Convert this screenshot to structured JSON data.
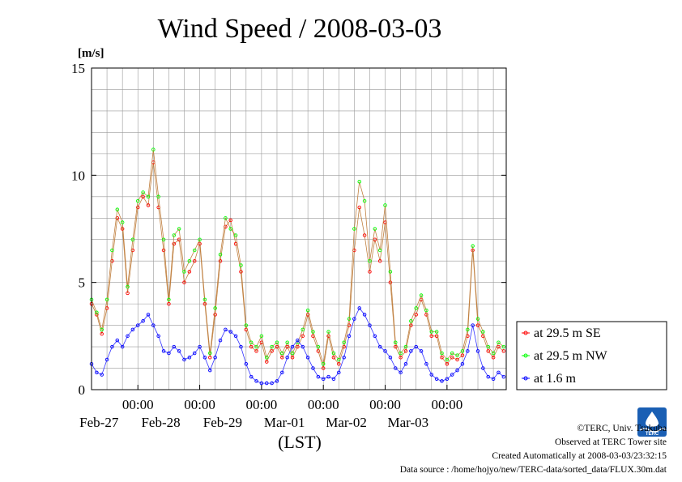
{
  "chart_data": {
    "type": "line",
    "title": "Wind Speed / 2008-03-03",
    "ylabel": "[m/s]",
    "xlabel": "(LST)",
    "ylim": [
      0,
      15
    ],
    "yticks": [
      0,
      5,
      10,
      15
    ],
    "xlim": [
      "2008-02-26T06:00",
      "2008-03-03T23:00"
    ],
    "xticks": [
      {
        "time": "2008-02-27T00:00",
        "label": "00:00",
        "date": "Feb-27"
      },
      {
        "time": "2008-02-28T00:00",
        "label": "00:00",
        "date": "Feb-28"
      },
      {
        "time": "2008-02-29T00:00",
        "label": "00:00",
        "date": "Feb-29"
      },
      {
        "time": "2008-03-01T00:00",
        "label": "00:00",
        "date": "Mar-01"
      },
      {
        "time": "2008-03-02T00:00",
        "label": "00:00",
        "date": "Mar-02"
      },
      {
        "time": "2008-03-03T00:00",
        "label": "00:00",
        "date": "Mar-03"
      }
    ],
    "grid": true,
    "legend_position": "right",
    "series": [
      {
        "name": "at 29.5 m SE",
        "color": "#ff0000",
        "points": [
          [
            "2008-02-26T06:00",
            4.0
          ],
          [
            "2008-02-26T08:00",
            3.5
          ],
          [
            "2008-02-26T10:00",
            2.6
          ],
          [
            "2008-02-26T12:00",
            3.8
          ],
          [
            "2008-02-26T14:00",
            6.0
          ],
          [
            "2008-02-26T16:00",
            8.0
          ],
          [
            "2008-02-26T18:00",
            7.5
          ],
          [
            "2008-02-26T20:00",
            4.5
          ],
          [
            "2008-02-26T22:00",
            6.5
          ],
          [
            "2008-02-27T00:00",
            8.5
          ],
          [
            "2008-02-27T02:00",
            9.0
          ],
          [
            "2008-02-27T04:00",
            8.6
          ],
          [
            "2008-02-27T06:00",
            10.6
          ],
          [
            "2008-02-27T08:00",
            8.5
          ],
          [
            "2008-02-27T10:00",
            6.5
          ],
          [
            "2008-02-27T12:00",
            4.0
          ],
          [
            "2008-02-27T14:00",
            6.8
          ],
          [
            "2008-02-27T16:00",
            7.0
          ],
          [
            "2008-02-27T18:00",
            5.0
          ],
          [
            "2008-02-27T20:00",
            5.5
          ],
          [
            "2008-02-27T22:00",
            6.0
          ],
          [
            "2008-02-28T00:00",
            6.8
          ],
          [
            "2008-02-28T02:00",
            4.0
          ],
          [
            "2008-02-28T04:00",
            1.5
          ],
          [
            "2008-02-28T06:00",
            3.5
          ],
          [
            "2008-02-28T08:00",
            6.0
          ],
          [
            "2008-02-28T10:00",
            7.6
          ],
          [
            "2008-02-28T12:00",
            7.9
          ],
          [
            "2008-02-28T14:00",
            6.8
          ],
          [
            "2008-02-28T16:00",
            5.5
          ],
          [
            "2008-02-28T18:00",
            2.8
          ],
          [
            "2008-02-28T20:00",
            2.0
          ],
          [
            "2008-02-28T22:00",
            1.8
          ],
          [
            "2008-02-29T00:00",
            2.2
          ],
          [
            "2008-02-29T02:00",
            1.3
          ],
          [
            "2008-02-29T04:00",
            1.8
          ],
          [
            "2008-02-29T06:00",
            2.0
          ],
          [
            "2008-02-29T08:00",
            1.5
          ],
          [
            "2008-02-29T10:00",
            2.0
          ],
          [
            "2008-02-29T12:00",
            1.5
          ],
          [
            "2008-02-29T14:00",
            2.0
          ],
          [
            "2008-02-29T16:00",
            2.5
          ],
          [
            "2008-02-29T18:00",
            3.5
          ],
          [
            "2008-02-29T20:00",
            2.5
          ],
          [
            "2008-02-29T22:00",
            1.8
          ],
          [
            "2008-03-01T00:00",
            1.0
          ],
          [
            "2008-03-01T02:00",
            2.5
          ],
          [
            "2008-03-01T04:00",
            1.5
          ],
          [
            "2008-03-01T06:00",
            1.2
          ],
          [
            "2008-03-01T08:00",
            2.0
          ],
          [
            "2008-03-01T10:00",
            3.0
          ],
          [
            "2008-03-01T12:00",
            6.5
          ],
          [
            "2008-03-01T14:00",
            8.5
          ],
          [
            "2008-03-01T16:00",
            7.2
          ],
          [
            "2008-03-01T18:00",
            5.5
          ],
          [
            "2008-03-01T20:00",
            7.0
          ],
          [
            "2008-03-01T22:00",
            6.0
          ],
          [
            "2008-03-02T00:00",
            7.8
          ],
          [
            "2008-03-02T02:00",
            5.0
          ],
          [
            "2008-03-02T04:00",
            2.0
          ],
          [
            "2008-03-02T06:00",
            1.5
          ],
          [
            "2008-03-02T08:00",
            1.8
          ],
          [
            "2008-03-02T10:00",
            3.0
          ],
          [
            "2008-03-02T12:00",
            3.5
          ],
          [
            "2008-03-02T14:00",
            4.2
          ],
          [
            "2008-03-02T16:00",
            3.5
          ],
          [
            "2008-03-02T18:00",
            2.5
          ],
          [
            "2008-03-02T20:00",
            2.5
          ],
          [
            "2008-03-02T22:00",
            1.5
          ],
          [
            "2008-03-03T00:00",
            1.2
          ],
          [
            "2008-03-03T02:00",
            1.5
          ],
          [
            "2008-03-03T04:00",
            1.4
          ],
          [
            "2008-03-03T06:00",
            1.6
          ],
          [
            "2008-03-03T08:00",
            2.5
          ],
          [
            "2008-03-03T10:00",
            6.5
          ],
          [
            "2008-03-03T12:00",
            3.0
          ],
          [
            "2008-03-03T14:00",
            2.5
          ],
          [
            "2008-03-03T16:00",
            1.8
          ],
          [
            "2008-03-03T18:00",
            1.5
          ],
          [
            "2008-03-03T20:00",
            2.0
          ],
          [
            "2008-03-03T22:00",
            1.8
          ]
        ]
      },
      {
        "name": "at 29.5 m NW",
        "color": "#00ff00",
        "points": [
          [
            "2008-02-26T06:00",
            4.2
          ],
          [
            "2008-02-26T08:00",
            3.6
          ],
          [
            "2008-02-26T10:00",
            2.8
          ],
          [
            "2008-02-26T12:00",
            4.2
          ],
          [
            "2008-02-26T14:00",
            6.5
          ],
          [
            "2008-02-26T16:00",
            8.4
          ],
          [
            "2008-02-26T18:00",
            7.8
          ],
          [
            "2008-02-26T20:00",
            4.8
          ],
          [
            "2008-02-26T22:00",
            7.0
          ],
          [
            "2008-02-27T00:00",
            8.8
          ],
          [
            "2008-02-27T02:00",
            9.2
          ],
          [
            "2008-02-27T04:00",
            9.0
          ],
          [
            "2008-02-27T06:00",
            11.2
          ],
          [
            "2008-02-27T08:00",
            9.0
          ],
          [
            "2008-02-27T10:00",
            7.0
          ],
          [
            "2008-02-27T12:00",
            4.2
          ],
          [
            "2008-02-27T14:00",
            7.2
          ],
          [
            "2008-02-27T16:00",
            7.5
          ],
          [
            "2008-02-27T18:00",
            5.5
          ],
          [
            "2008-02-27T20:00",
            6.0
          ],
          [
            "2008-02-27T22:00",
            6.5
          ],
          [
            "2008-02-28T00:00",
            7.0
          ],
          [
            "2008-02-28T02:00",
            4.2
          ],
          [
            "2008-02-28T04:00",
            1.7
          ],
          [
            "2008-02-28T06:00",
            3.8
          ],
          [
            "2008-02-28T08:00",
            6.3
          ],
          [
            "2008-02-28T10:00",
            8.0
          ],
          [
            "2008-02-28T12:00",
            7.5
          ],
          [
            "2008-02-28T14:00",
            7.2
          ],
          [
            "2008-02-28T16:00",
            5.8
          ],
          [
            "2008-02-28T18:00",
            3.0
          ],
          [
            "2008-02-28T20:00",
            2.2
          ],
          [
            "2008-02-28T22:00",
            2.0
          ],
          [
            "2008-02-29T00:00",
            2.5
          ],
          [
            "2008-02-29T02:00",
            1.5
          ],
          [
            "2008-02-29T04:00",
            2.0
          ],
          [
            "2008-02-29T06:00",
            2.2
          ],
          [
            "2008-02-29T08:00",
            1.7
          ],
          [
            "2008-02-29T10:00",
            2.2
          ],
          [
            "2008-02-29T12:00",
            1.7
          ],
          [
            "2008-02-29T14:00",
            2.2
          ],
          [
            "2008-02-29T16:00",
            2.8
          ],
          [
            "2008-02-29T18:00",
            3.7
          ],
          [
            "2008-02-29T20:00",
            2.7
          ],
          [
            "2008-02-29T22:00",
            2.0
          ],
          [
            "2008-03-01T00:00",
            1.2
          ],
          [
            "2008-03-01T02:00",
            2.7
          ],
          [
            "2008-03-01T04:00",
            1.7
          ],
          [
            "2008-03-01T06:00",
            1.4
          ],
          [
            "2008-03-01T08:00",
            2.2
          ],
          [
            "2008-03-01T10:00",
            3.3
          ],
          [
            "2008-03-01T12:00",
            7.5
          ],
          [
            "2008-03-01T14:00",
            9.7
          ],
          [
            "2008-03-01T16:00",
            8.8
          ],
          [
            "2008-03-01T18:00",
            6.0
          ],
          [
            "2008-03-01T20:00",
            7.5
          ],
          [
            "2008-03-01T22:00",
            6.5
          ],
          [
            "2008-03-02T00:00",
            8.6
          ],
          [
            "2008-03-02T02:00",
            5.5
          ],
          [
            "2008-03-02T04:00",
            2.2
          ],
          [
            "2008-03-02T06:00",
            1.7
          ],
          [
            "2008-03-02T08:00",
            2.0
          ],
          [
            "2008-03-02T10:00",
            3.2
          ],
          [
            "2008-03-02T12:00",
            3.8
          ],
          [
            "2008-03-02T14:00",
            4.4
          ],
          [
            "2008-03-02T16:00",
            3.7
          ],
          [
            "2008-03-02T18:00",
            2.7
          ],
          [
            "2008-03-02T20:00",
            2.7
          ],
          [
            "2008-03-02T22:00",
            1.7
          ],
          [
            "2008-03-03T00:00",
            1.4
          ],
          [
            "2008-03-03T02:00",
            1.7
          ],
          [
            "2008-03-03T04:00",
            1.6
          ],
          [
            "2008-03-03T06:00",
            1.8
          ],
          [
            "2008-03-03T08:00",
            2.8
          ],
          [
            "2008-03-03T10:00",
            6.7
          ],
          [
            "2008-03-03T12:00",
            3.3
          ],
          [
            "2008-03-03T14:00",
            2.7
          ],
          [
            "2008-03-03T16:00",
            2.0
          ],
          [
            "2008-03-03T18:00",
            1.7
          ],
          [
            "2008-03-03T20:00",
            2.2
          ],
          [
            "2008-03-03T22:00",
            2.0
          ]
        ]
      },
      {
        "name": "at 1.6 m",
        "color": "#0000ff",
        "points": [
          [
            "2008-02-26T06:00",
            1.2
          ],
          [
            "2008-02-26T08:00",
            0.8
          ],
          [
            "2008-02-26T10:00",
            0.7
          ],
          [
            "2008-02-26T12:00",
            1.4
          ],
          [
            "2008-02-26T14:00",
            2.0
          ],
          [
            "2008-02-26T16:00",
            2.3
          ],
          [
            "2008-02-26T18:00",
            2.0
          ],
          [
            "2008-02-26T20:00",
            2.5
          ],
          [
            "2008-02-26T22:00",
            2.8
          ],
          [
            "2008-02-27T00:00",
            3.0
          ],
          [
            "2008-02-27T02:00",
            3.2
          ],
          [
            "2008-02-27T04:00",
            3.5
          ],
          [
            "2008-02-27T06:00",
            3.0
          ],
          [
            "2008-02-27T08:00",
            2.5
          ],
          [
            "2008-02-27T10:00",
            1.8
          ],
          [
            "2008-02-27T12:00",
            1.7
          ],
          [
            "2008-02-27T14:00",
            2.0
          ],
          [
            "2008-02-27T16:00",
            1.8
          ],
          [
            "2008-02-27T18:00",
            1.4
          ],
          [
            "2008-02-27T20:00",
            1.5
          ],
          [
            "2008-02-27T22:00",
            1.7
          ],
          [
            "2008-02-28T00:00",
            2.0
          ],
          [
            "2008-02-28T02:00",
            1.5
          ],
          [
            "2008-02-28T04:00",
            0.9
          ],
          [
            "2008-02-28T06:00",
            1.5
          ],
          [
            "2008-02-28T08:00",
            2.3
          ],
          [
            "2008-02-28T10:00",
            2.8
          ],
          [
            "2008-02-28T12:00",
            2.7
          ],
          [
            "2008-02-28T14:00",
            2.5
          ],
          [
            "2008-02-28T16:00",
            2.0
          ],
          [
            "2008-02-28T18:00",
            1.2
          ],
          [
            "2008-02-28T20:00",
            0.6
          ],
          [
            "2008-02-28T22:00",
            0.4
          ],
          [
            "2008-02-29T00:00",
            0.3
          ],
          [
            "2008-02-29T02:00",
            0.3
          ],
          [
            "2008-02-29T04:00",
            0.3
          ],
          [
            "2008-02-29T06:00",
            0.4
          ],
          [
            "2008-02-29T08:00",
            0.8
          ],
          [
            "2008-02-29T10:00",
            1.5
          ],
          [
            "2008-02-29T12:00",
            2.0
          ],
          [
            "2008-02-29T14:00",
            2.3
          ],
          [
            "2008-02-29T16:00",
            2.0
          ],
          [
            "2008-02-29T18:00",
            1.5
          ],
          [
            "2008-02-29T20:00",
            1.0
          ],
          [
            "2008-02-29T22:00",
            0.6
          ],
          [
            "2008-03-01T00:00",
            0.5
          ],
          [
            "2008-03-01T02:00",
            0.6
          ],
          [
            "2008-03-01T04:00",
            0.5
          ],
          [
            "2008-03-01T06:00",
            0.8
          ],
          [
            "2008-03-01T08:00",
            1.5
          ],
          [
            "2008-03-01T10:00",
            2.5
          ],
          [
            "2008-03-01T12:00",
            3.3
          ],
          [
            "2008-03-01T14:00",
            3.8
          ],
          [
            "2008-03-01T16:00",
            3.5
          ],
          [
            "2008-03-01T18:00",
            3.0
          ],
          [
            "2008-03-01T20:00",
            2.5
          ],
          [
            "2008-03-01T22:00",
            2.0
          ],
          [
            "2008-03-02T00:00",
            1.8
          ],
          [
            "2008-03-02T02:00",
            1.5
          ],
          [
            "2008-03-02T04:00",
            1.0
          ],
          [
            "2008-03-02T06:00",
            0.8
          ],
          [
            "2008-03-02T08:00",
            1.2
          ],
          [
            "2008-03-02T10:00",
            1.8
          ],
          [
            "2008-03-02T12:00",
            2.0
          ],
          [
            "2008-03-02T14:00",
            1.8
          ],
          [
            "2008-03-02T16:00",
            1.2
          ],
          [
            "2008-03-02T18:00",
            0.7
          ],
          [
            "2008-03-02T20:00",
            0.5
          ],
          [
            "2008-03-02T22:00",
            0.4
          ],
          [
            "2008-03-03T00:00",
            0.5
          ],
          [
            "2008-03-03T02:00",
            0.7
          ],
          [
            "2008-03-03T04:00",
            0.9
          ],
          [
            "2008-03-03T06:00",
            1.2
          ],
          [
            "2008-03-03T08:00",
            1.8
          ],
          [
            "2008-03-03T10:00",
            3.0
          ],
          [
            "2008-03-03T12:00",
            1.8
          ],
          [
            "2008-03-03T14:00",
            1.0
          ],
          [
            "2008-03-03T16:00",
            0.6
          ],
          [
            "2008-03-03T18:00",
            0.5
          ],
          [
            "2008-03-03T20:00",
            0.8
          ],
          [
            "2008-03-03T22:00",
            0.6
          ]
        ]
      }
    ]
  },
  "footer": {
    "copyright": "©TERC, Univ. Tsukuba",
    "site": "Observed at TERC Tower site",
    "created": "Created Automatically at 2008-03-03/23:32:15",
    "source": "Data source : /home/hojyo/new/TERC-data/sorted_data/FLUX.30m.dat",
    "logo_text": "TERC",
    "logo_color": "#1a5fb4"
  }
}
